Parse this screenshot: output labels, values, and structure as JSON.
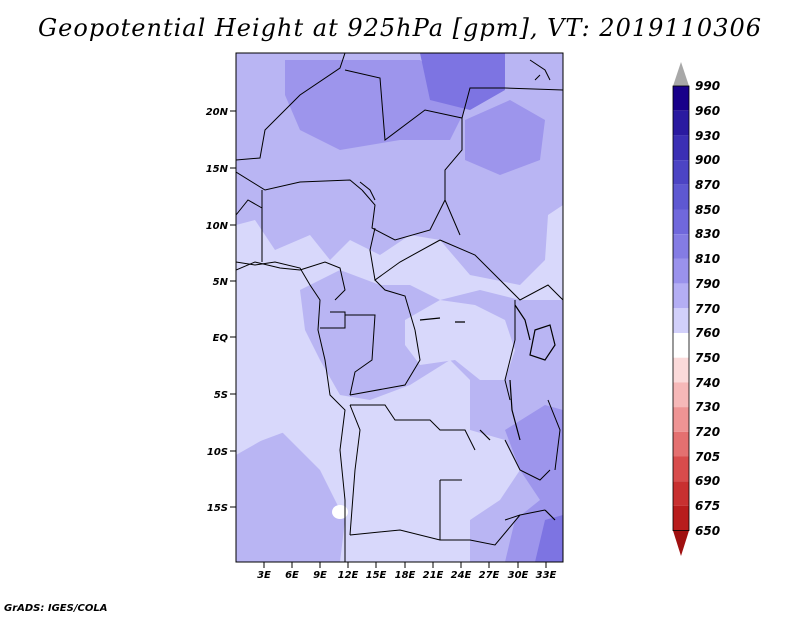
{
  "title": "Geopotential Height at 925hPa [gpm], VT: 2019110306",
  "credit": "GrADS: IGES/COLA",
  "map": {
    "lat_labels": [
      "20N",
      "15N",
      "10N",
      "5N",
      "EQ",
      "5S",
      "10S",
      "15S"
    ],
    "lon_labels": [
      "3E",
      "6E",
      "9E",
      "12E",
      "15E",
      "18E",
      "21E",
      "24E",
      "27E",
      "30E",
      "33E"
    ]
  },
  "colorbar": {
    "levels": [
      "990",
      "960",
      "930",
      "900",
      "870",
      "850",
      "830",
      "810",
      "790",
      "770",
      "760",
      "750",
      "740",
      "730",
      "720",
      "705",
      "690",
      "675",
      "650"
    ],
    "colors": [
      "#18008a",
      "#2a1aa0",
      "#3b2fb4",
      "#4c44c4",
      "#5e58d2",
      "#7068dc",
      "#847ce4",
      "#9a92ec",
      "#b4aef4",
      "#d2d0fa",
      "#ffffff",
      "#fbdada",
      "#f6b8b8",
      "#ee9494",
      "#e47070",
      "#d84c4c",
      "#c83030",
      "#b81c1c",
      "#a01010"
    ],
    "top_color": "#a8a8a8",
    "bottom_color": "#a01010"
  },
  "fill_colors": {
    "c790": "#d8d8fb",
    "c810": "#b9b5f3",
    "c830": "#9d95ec",
    "c850": "#7d74e2"
  }
}
